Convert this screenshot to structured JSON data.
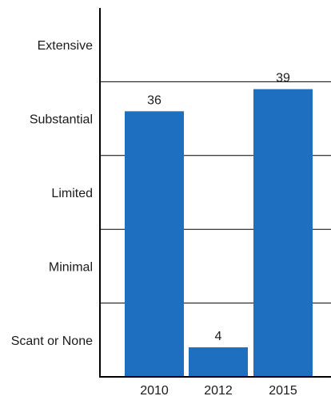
{
  "chart_data": {
    "type": "bar",
    "title": "",
    "xlabel": "",
    "ylabel": "",
    "categories": [
      "2010",
      "2012",
      "2015"
    ],
    "values": [
      36,
      4,
      39
    ],
    "data_labels": [
      "36",
      "4",
      "39"
    ],
    "ylim": [
      0,
      50
    ],
    "y_levels": [
      "Scant or None",
      "Minimal",
      "Limited",
      "Substantial",
      "Extensive"
    ],
    "grid": true,
    "legend": "none",
    "bar_color": "#1f6fc1",
    "axis_color": "#000000"
  }
}
